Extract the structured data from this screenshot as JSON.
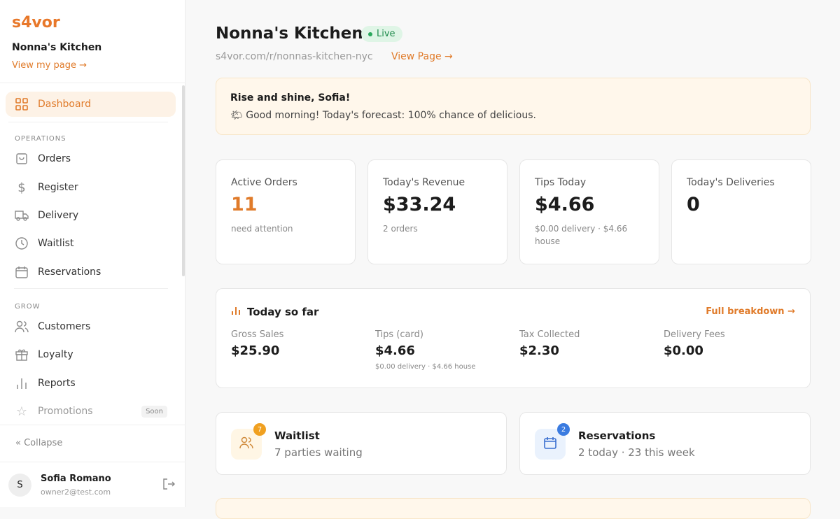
{
  "brand": "s4vor",
  "sidebar": {
    "restaurant": "Nonna's Kitchen",
    "view_my_page": "View my page →",
    "dashboard": "Dashboard",
    "sections": {
      "operations": "OPERATIONS",
      "grow": "GROW"
    },
    "operations": [
      {
        "label": "Orders",
        "icon": "bag-icon"
      },
      {
        "label": "Register",
        "icon": "dollar-icon"
      },
      {
        "label": "Delivery",
        "icon": "truck-icon"
      },
      {
        "label": "Waitlist",
        "icon": "clock-icon"
      },
      {
        "label": "Reservations",
        "icon": "calendar-icon"
      }
    ],
    "grow": [
      {
        "label": "Customers",
        "icon": "users-icon"
      },
      {
        "label": "Loyalty",
        "icon": "gift-icon"
      },
      {
        "label": "Reports",
        "icon": "bar-chart-icon"
      },
      {
        "label": "Promotions",
        "icon": "star-icon",
        "badge": "Soon"
      }
    ],
    "collapse": "« Collapse",
    "user": {
      "initial": "S",
      "name": "Sofia Romano",
      "email": "owner2@test.com"
    }
  },
  "header": {
    "title": "Nonna's Kitchen",
    "status": "Live",
    "url": "s4vor.com/r/nonnas-kitchen-nyc",
    "view_page": "View Page →"
  },
  "banner": {
    "title": "Rise and shine, Sofia!",
    "message": "🌤 Good morning! Today's forecast: 100% chance of delicious."
  },
  "stats": [
    {
      "label": "Active Orders",
      "value": "11",
      "sub": "need attention"
    },
    {
      "label": "Today's Revenue",
      "value": "$33.24",
      "sub": "2 orders"
    },
    {
      "label": "Tips Today",
      "value": "$4.66",
      "sub": "$0.00 delivery · $4.66 house"
    },
    {
      "label": "Today's Deliveries",
      "value": "0",
      "sub": ""
    }
  ],
  "today": {
    "title": "Today so far",
    "link": "Full breakdown →",
    "items": [
      {
        "label": "Gross Sales",
        "value": "$25.90",
        "sub": ""
      },
      {
        "label": "Tips (card)",
        "value": "$4.66",
        "sub": "$0.00 delivery · $4.66 house"
      },
      {
        "label": "Tax Collected",
        "value": "$2.30",
        "sub": ""
      },
      {
        "label": "Delivery Fees",
        "value": "$0.00",
        "sub": ""
      }
    ]
  },
  "waitlist": {
    "title": "Waitlist",
    "sub": "7 parties waiting",
    "badge": "7"
  },
  "reservations": {
    "title": "Reservations",
    "sub": "2 today · 23 this week",
    "badge": "2"
  },
  "colors": {
    "accent": "#e07b2a",
    "live": "#1d8a4a",
    "waitlist_badge": "#f0a020",
    "reservation_badge": "#3a7be0"
  }
}
